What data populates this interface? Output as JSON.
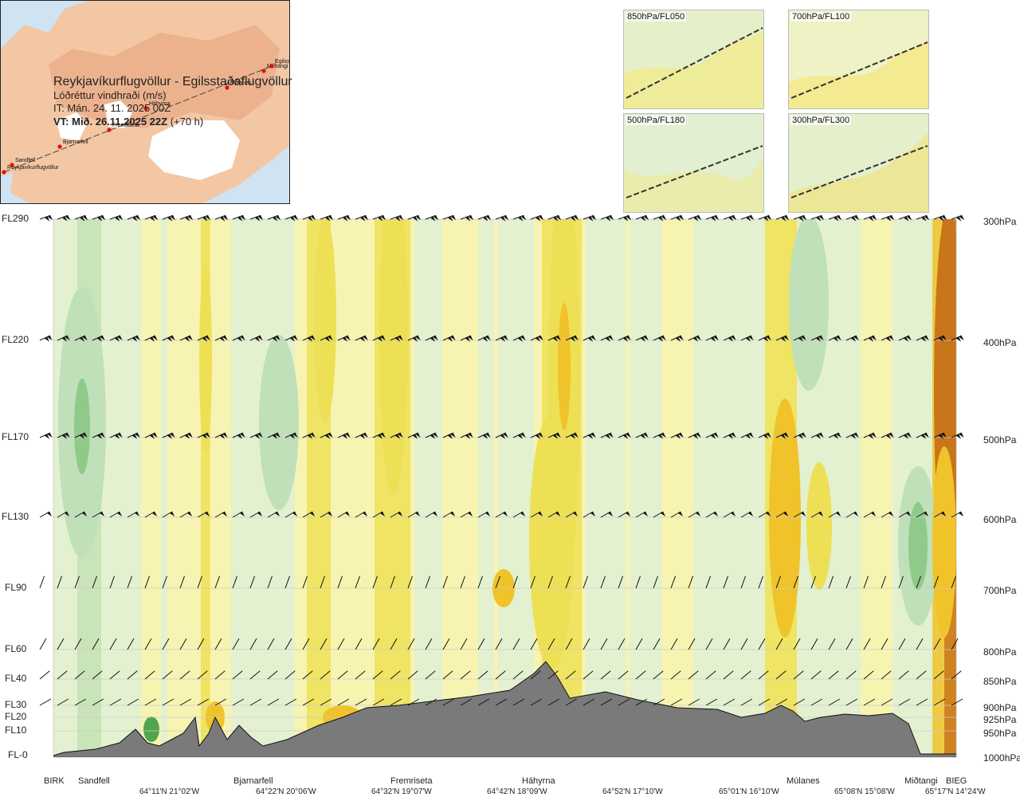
{
  "header": {
    "route": "Reykjavíkurflugvöllur - Egilsstaðaflugvöllur",
    "quantity": "Lóðréttur vindhraði (m/s)",
    "issue_time": "IT: Mán. 24. 11. 2025 00Z",
    "valid_label": "VT: Mið. 26.11.2025 22Z",
    "valid_offset": " (+70 h)"
  },
  "map": {
    "waypoints": [
      {
        "name": "Reykjavíkurflugvöllur"
      },
      {
        "name": "Sandfell"
      },
      {
        "name": "Bjarnarfell"
      },
      {
        "name": "Fremriseta"
      },
      {
        "name": "Háhyrna"
      },
      {
        "name": "Múlanes"
      },
      {
        "name": "Miðtangi"
      },
      {
        "name": "Egilss"
      }
    ]
  },
  "level_maps": [
    {
      "label": "850hPa/FL050"
    },
    {
      "label": "700hPa/FL100"
    },
    {
      "label": "500hPa/FL180"
    },
    {
      "label": "300hPa/FL300"
    }
  ],
  "chart_data": {
    "type": "heatmap",
    "title": "Lóðréttur vindhraði (m/s)",
    "flight_levels": [
      "FL290",
      "FL220",
      "FL170",
      "FL130",
      "FL90",
      "FL60",
      "FL40",
      "FL30",
      "FL20",
      "FL10",
      "FL-0"
    ],
    "pressure_levels": [
      "300hPa",
      "400hPa",
      "500hPa",
      "600hPa",
      "700hPa",
      "800hPa",
      "850hPa",
      "900hPa",
      "925hPa",
      "950hPa",
      "1000hPa"
    ],
    "waypoints": [
      "BIRK",
      "Sandfell",
      "Bjarnarfell",
      "Fremriseta",
      "Háhyrna",
      "Múlanes",
      "Miðtangi",
      "BIEG"
    ],
    "coordinates": [
      "64°11'N 21°02'W",
      "64°22'N 20°06'W",
      "64°32'N 19°07'W",
      "64°42'N 18°09'W",
      "64°52'N 17°10'W",
      "65°01'N 16°10'W",
      "65°08'N 15°08'W",
      "65°17'N 14°24'W"
    ],
    "colors": {
      "descent_weak": "#dff0d6",
      "descent_mod": "#bfe0b8",
      "descent_strong": "#8fca8a",
      "descent_max": "#4fa550",
      "ascent_weak": "#f7f3b2",
      "ascent_mod": "#ede055",
      "ascent_strong": "#f0c32a",
      "ascent_max": "#c9751a",
      "terrain": "#7a7a7a"
    }
  }
}
